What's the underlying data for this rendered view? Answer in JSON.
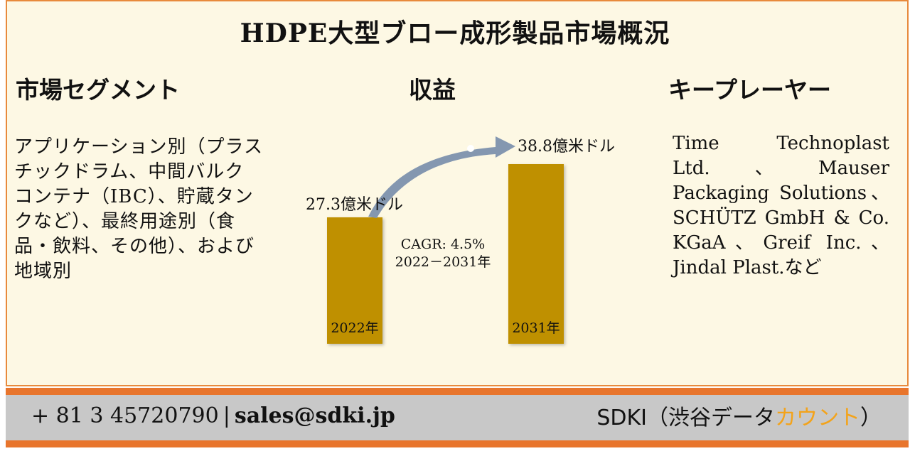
{
  "title": "HDPE大型ブロー成形製品市場概況",
  "segment": {
    "heading": "市場セグメント",
    "text": "アプリケーション別（プラスチックドラム、中間バルクコンテナ（IBC）、貯蔵タンクなど）、最終用途別（食品・飲料、その他）、および地域別"
  },
  "revenue": {
    "heading": "収益",
    "cagr_label": "CAGR: 4.5%",
    "cagr_period": "2022－2031年"
  },
  "key_players": {
    "heading": "キープレーヤー",
    "text": "Time Technoplast Ltd.、Mauser Packaging Solutions、SCHÜTZ GmbH & Co. KGaA、Greif Inc.、Jindal Plast.など"
  },
  "chart_data": {
    "type": "bar",
    "categories": [
      "2022年",
      "2031年"
    ],
    "values": [
      27.3,
      38.8
    ],
    "value_labels": [
      "27.3億米ドル",
      "38.8億米ドル"
    ],
    "unit": "億米ドル",
    "bar_color": "#bf9000",
    "arrow_color": "#8497b0"
  },
  "footer": {
    "phone": "+ 81 3 45720790",
    "separator": "|",
    "email": "sales@sdki.jp",
    "brand_main": "SDKI（渋谷データ",
    "brand_accent": "カウント",
    "brand_close": "）"
  },
  "colors": {
    "panel_bg": "#fdf8e4",
    "border": "#e88a3c",
    "strip_orange": "#e8752c",
    "strip_gray": "#c8c8c8",
    "brand_accent": "#f3a31a"
  }
}
